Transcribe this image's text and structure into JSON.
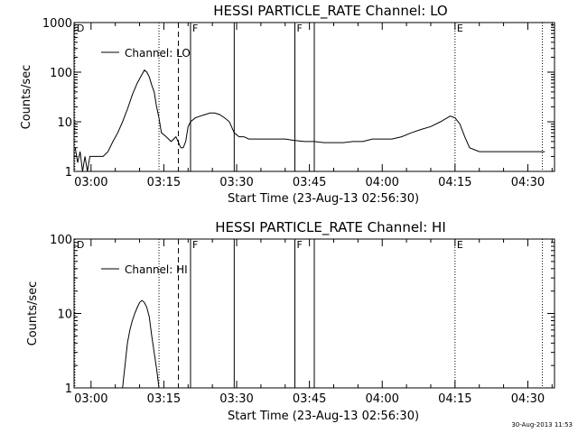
{
  "footer_timestamp": "30-Aug-2013 11:53",
  "chart_data": [
    {
      "type": "line",
      "title": "HESSI PARTICLE_RATE Channel: LO",
      "xlabel": "Start Time (23-Aug-13 02:56:30)",
      "ylabel": "Counts/sec",
      "yscale": "log",
      "ylim": [
        1,
        1000
      ],
      "xlim": [
        "02:56:30",
        "04:35:30"
      ],
      "x_ticks": [
        "03:00",
        "03:15",
        "03:30",
        "03:45",
        "04:00",
        "04:15",
        "04:30"
      ],
      "y_ticks": [
        "1",
        "10",
        "100",
        "1000"
      ],
      "legend": {
        "label": "Channel: LO",
        "placement": "top-left"
      },
      "markers": [
        {
          "time": "02:56:40",
          "style": "dotted",
          "label": "D"
        },
        {
          "time": "03:14:00",
          "style": "dotted",
          "label": ""
        },
        {
          "time": "03:18:00",
          "style": "dashed",
          "label": ""
        },
        {
          "time": "03:20:30",
          "style": "solid",
          "label": "F"
        },
        {
          "time": "03:29:30",
          "style": "solid",
          "label": ""
        },
        {
          "time": "03:42:00",
          "style": "solid",
          "label": "F"
        },
        {
          "time": "03:46:00",
          "style": "solid",
          "label": ""
        },
        {
          "time": "04:15:00",
          "style": "dotted",
          "label": "E"
        },
        {
          "time": "04:33:00",
          "style": "dotted",
          "label": ""
        }
      ],
      "series": [
        {
          "x": [
            "02:56:45",
            "02:57:15",
            "02:57:45",
            "02:58:15",
            "02:58:45",
            "02:59:15",
            "02:59:45",
            "03:00:30",
            "03:01:30",
            "03:02:30",
            "03:03:30",
            "03:04:30",
            "03:05:30",
            "03:06:30",
            "03:07:30",
            "03:08:30",
            "03:09:30",
            "03:10:30",
            "03:11:00",
            "03:11:30",
            "03:12:00",
            "03:12:30",
            "03:13:00",
            "03:13:30",
            "03:14:00",
            "03:14:30",
            "03:15:30",
            "03:16:30",
            "03:17:30",
            "03:18:30",
            "03:19:00",
            "03:19:30",
            "03:20:00",
            "03:20:30",
            "03:21:30",
            "03:22:30",
            "03:23:30",
            "03:24:30",
            "03:25:30",
            "03:26:30",
            "03:27:30",
            "03:28:30",
            "03:29:30",
            "03:30:30",
            "03:31:30",
            "03:32:30",
            "03:34:00",
            "03:36:00",
            "03:38:00",
            "03:40:00",
            "03:42:00",
            "03:44:00",
            "03:46:00",
            "03:48:00",
            "03:50:00",
            "03:52:00",
            "03:54:00",
            "03:56:00",
            "03:58:00",
            "04:00:00",
            "04:02:00",
            "04:04:00",
            "04:06:00",
            "04:08:00",
            "04:10:00",
            "04:12:00",
            "04:14:00",
            "04:15:00",
            "04:16:00",
            "04:17:00",
            "04:18:00",
            "04:20:00",
            "04:22:00",
            "04:24:00",
            "04:26:00",
            "04:28:00",
            "04:30:00",
            "04:32:00",
            "04:33:30"
          ],
          "y": [
            3,
            1.5,
            2.5,
            1,
            2,
            0.7,
            2,
            2,
            2,
            2,
            2.5,
            4,
            6,
            10,
            18,
            35,
            60,
            90,
            110,
            100,
            80,
            55,
            40,
            20,
            12,
            6,
            5,
            4,
            5,
            3,
            3,
            4,
            8,
            10,
            12,
            13,
            14,
            15,
            15,
            14,
            12,
            10,
            6,
            5,
            5,
            4.5,
            4.5,
            4.5,
            4.5,
            4.5,
            4.2,
            4,
            4,
            3.8,
            3.8,
            3.8,
            4,
            4,
            4.5,
            4.5,
            4.5,
            5,
            6,
            7,
            8,
            10,
            13,
            12,
            9,
            5,
            3,
            2.5,
            2.5,
            2.5,
            2.5,
            2.5,
            2.5,
            2.5,
            2.5
          ]
        }
      ]
    },
    {
      "type": "line",
      "title": "HESSI PARTICLE_RATE Channel: HI",
      "xlabel": "Start Time (23-Aug-13 02:56:30)",
      "ylabel": "Counts/sec",
      "yscale": "log",
      "ylim": [
        1,
        100
      ],
      "xlim": [
        "02:56:30",
        "04:35:30"
      ],
      "x_ticks": [
        "03:00",
        "03:15",
        "03:30",
        "03:45",
        "04:00",
        "04:15",
        "04:30"
      ],
      "y_ticks": [
        "1",
        "10",
        "100"
      ],
      "legend": {
        "label": "Channel: HI",
        "placement": "top-left"
      },
      "markers": [
        {
          "time": "02:56:40",
          "style": "dotted",
          "label": "D"
        },
        {
          "time": "03:14:00",
          "style": "dotted",
          "label": ""
        },
        {
          "time": "03:18:00",
          "style": "dashed",
          "label": ""
        },
        {
          "time": "03:20:30",
          "style": "solid",
          "label": "F"
        },
        {
          "time": "03:29:30",
          "style": "solid",
          "label": ""
        },
        {
          "time": "03:42:00",
          "style": "solid",
          "label": "F"
        },
        {
          "time": "03:46:00",
          "style": "solid",
          "label": ""
        },
        {
          "time": "04:15:00",
          "style": "dotted",
          "label": "E"
        },
        {
          "time": "04:33:00",
          "style": "dotted",
          "label": ""
        }
      ],
      "series": [
        {
          "x": [
            "03:06:30",
            "03:07:00",
            "03:07:30",
            "03:08:00",
            "03:08:30",
            "03:09:00",
            "03:09:30",
            "03:10:00",
            "03:10:30",
            "03:11:00",
            "03:11:30",
            "03:12:00",
            "03:12:30",
            "03:13:00",
            "03:13:30",
            "03:14:00"
          ],
          "y": [
            1,
            2,
            4,
            6,
            8,
            10,
            12,
            14,
            15,
            14,
            12,
            9,
            5,
            3,
            1.8,
            1
          ]
        }
      ]
    }
  ]
}
